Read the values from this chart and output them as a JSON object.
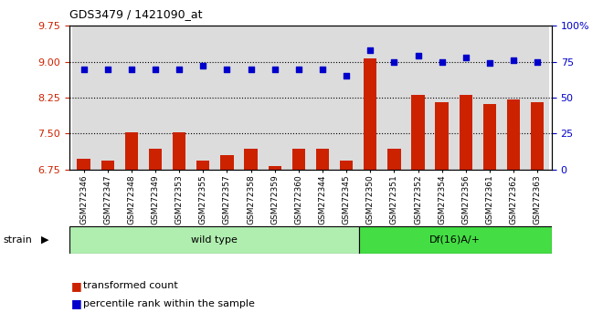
{
  "title": "GDS3479 / 1421090_at",
  "samples": [
    "GSM272346",
    "GSM272347",
    "GSM272348",
    "GSM272349",
    "GSM272353",
    "GSM272355",
    "GSM272357",
    "GSM272358",
    "GSM272359",
    "GSM272360",
    "GSM272344",
    "GSM272345",
    "GSM272350",
    "GSM272351",
    "GSM272352",
    "GSM272354",
    "GSM272356",
    "GSM272361",
    "GSM272362",
    "GSM272363"
  ],
  "transformed_count": [
    6.97,
    6.93,
    7.52,
    7.18,
    7.52,
    6.93,
    7.05,
    7.18,
    6.82,
    7.18,
    7.18,
    6.93,
    9.07,
    7.18,
    8.3,
    8.15,
    8.3,
    8.12,
    8.22,
    8.15
  ],
  "percentile_rank": [
    70,
    70,
    70,
    70,
    70,
    72,
    70,
    70,
    70,
    70,
    70,
    65,
    83,
    75,
    79,
    75,
    78,
    74,
    76,
    75
  ],
  "group_labels": [
    "wild type",
    "Df(16)A/+"
  ],
  "group_sizes": [
    12,
    8
  ],
  "wt_color": "#B0EEB0",
  "df_color": "#44DD44",
  "bar_color": "#CC2200",
  "dot_color": "#0000CC",
  "ylim_left": [
    6.75,
    9.75
  ],
  "ylim_right": [
    0,
    100
  ],
  "yticks_left": [
    6.75,
    7.5,
    8.25,
    9.0,
    9.75
  ],
  "yticks_right": [
    0,
    25,
    50,
    75,
    100
  ],
  "grid_values": [
    7.5,
    8.25,
    9.0
  ],
  "legend_items": [
    "transformed count",
    "percentile rank within the sample"
  ],
  "strain_label": "strain"
}
